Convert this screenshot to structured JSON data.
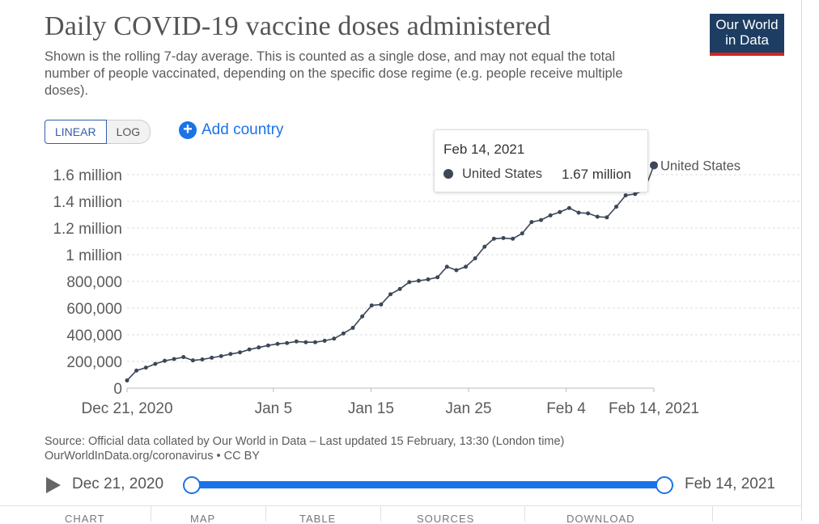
{
  "header": {
    "title": "Daily COVID-19 vaccine doses administered",
    "subtitle": "Shown is the rolling 7-day average. This is counted as a single dose, and may not equal the total number of people vaccinated, depending on the specific dose regime (e.g. people receive multiple doses).",
    "logo_line1": "Our World",
    "logo_line2": "in Data"
  },
  "controls": {
    "linear_label": "LINEAR",
    "log_label": "LOG",
    "add_country_label": "Add country"
  },
  "tooltip": {
    "date": "Feb 14, 2021",
    "series": "United States",
    "value": "1.67 million"
  },
  "source": {
    "line1": "Source: Official data collated by Our World in Data – Last updated 15 February, 13:30 (London time)",
    "line2": "OurWorldInData.org/coronavirus • CC BY"
  },
  "timeline": {
    "start": "Dec 21, 2020",
    "end": "Feb 14, 2021"
  },
  "tabs": [
    "CHART",
    "MAP",
    "TABLE",
    "SOURCES",
    "DOWNLOAD"
  ],
  "colors": {
    "line": "#3c4758",
    "accent": "#1a73e8",
    "logo_bg": "#1d3d63",
    "logo_bar": "#ce261e"
  },
  "chart_data": {
    "type": "line",
    "title": "Daily COVID-19 vaccine doses administered",
    "series": [
      {
        "name": "United States",
        "x_start": "Dec 21, 2020",
        "values": [
          57900,
          132000,
          154000,
          182000,
          205000,
          218000,
          233000,
          208000,
          215000,
          228000,
          240000,
          256000,
          268000,
          290000,
          305000,
          320000,
          332000,
          338000,
          350000,
          344000,
          344000,
          355000,
          371000,
          410000,
          452000,
          538000,
          620000,
          627000,
          704000,
          743000,
          795000,
          805000,
          815000,
          831000,
          910000,
          884000,
          910000,
          973000,
          1060000,
          1120000,
          1125000,
          1120000,
          1160000,
          1245000,
          1260000,
          1295000,
          1320000,
          1350000,
          1315000,
          1310000,
          1285000,
          1280000,
          1360000,
          1445000,
          1455000,
          1485000,
          1670000
        ]
      }
    ],
    "x_ticks": [
      "Dec 21, 2020",
      "Jan 5",
      "Jan 15",
      "Jan 25",
      "Feb 4",
      "Feb 14, 2021"
    ],
    "y_ticks": [
      "0",
      "200,000",
      "400,000",
      "600,000",
      "800,000",
      "1 million",
      "1.2 million",
      "1.4 million",
      "1.6 million"
    ],
    "ylim": [
      0,
      1600000
    ],
    "x_range": [
      "Dec 21, 2020",
      "Feb 14, 2021"
    ],
    "grid": "horizontal dashed",
    "end_label": "United States"
  }
}
